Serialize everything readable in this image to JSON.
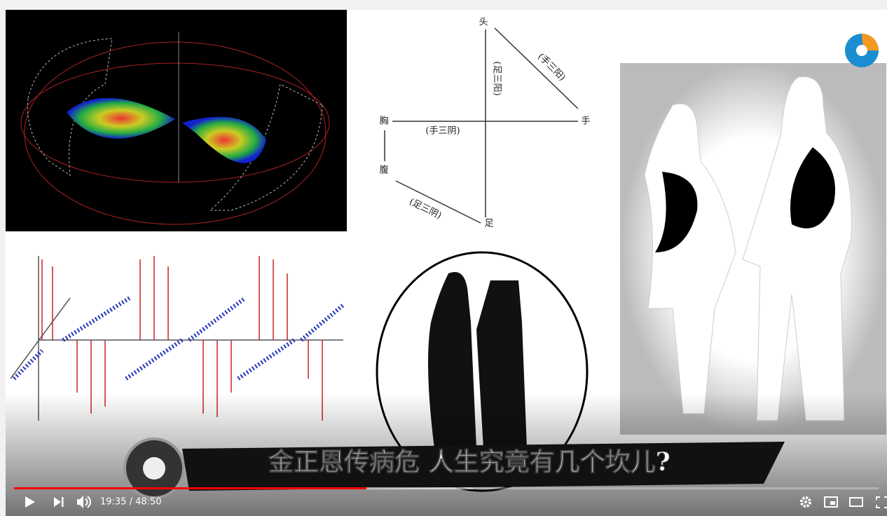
{
  "diagram": {
    "nodes": [
      "头",
      "手",
      "胸",
      "腹",
      "足"
    ],
    "edges": [
      "(足三阳)",
      "(手三阳)",
      "(手三阴)",
      "(足三阴)"
    ]
  },
  "caption": "金正恩传病危 人生究竟有几个坎儿?",
  "player": {
    "time": "19:35 / 48:50"
  }
}
